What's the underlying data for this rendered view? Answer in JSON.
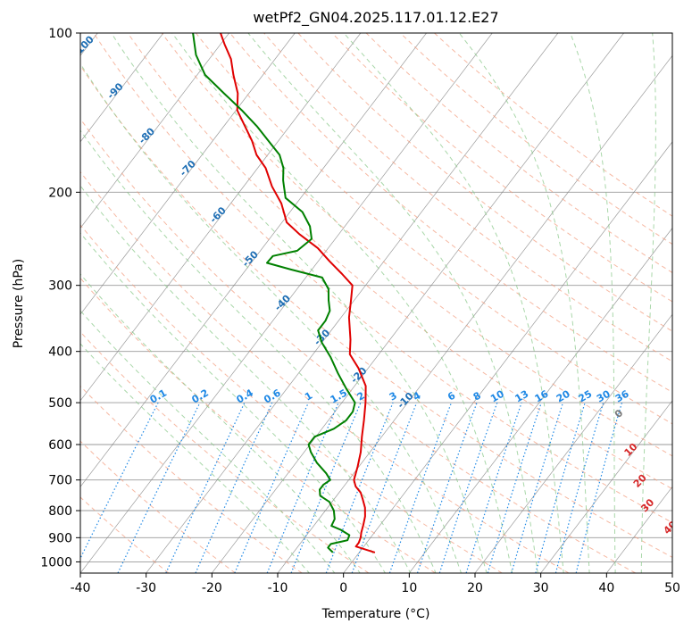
{
  "chart_data": {
    "type": "line",
    "subtype": "skew-t log-p diagram",
    "title": "wetPf2_GN04.2025.117.01.12.E27",
    "xlabel": "Temperature (°C)",
    "ylabel": "Pressure (hPa)",
    "xlim": [
      -40,
      50
    ],
    "ylim": [
      1050,
      100
    ],
    "y_scale": "log",
    "grid": true,
    "x_ticks": [
      "-40",
      "-30",
      "-20",
      "-10",
      "0",
      "10",
      "20",
      "30",
      "40",
      "50"
    ],
    "y_ticks": [
      "100",
      "200",
      "300",
      "400",
      "500",
      "600",
      "700",
      "800",
      "900",
      "1000"
    ],
    "series": [
      {
        "role": "temperature",
        "color": "#e00000",
        "points": [
          [
            2.4,
            960
          ],
          [
            -1.2,
            935
          ],
          [
            -1.2,
            920
          ],
          [
            -1.5,
            900
          ],
          [
            -2.0,
            880
          ],
          [
            -2.6,
            850
          ],
          [
            -3.3,
            820
          ],
          [
            -4.3,
            790
          ],
          [
            -5.7,
            760
          ],
          [
            -6.7,
            740
          ],
          [
            -8.2,
            720
          ],
          [
            -9.2,
            700
          ],
          [
            -10.2,
            660
          ],
          [
            -11.4,
            620
          ],
          [
            -13.0,
            580
          ],
          [
            -14.6,
            540
          ],
          [
            -16.4,
            500
          ],
          [
            -18.3,
            465
          ],
          [
            -21.5,
            430
          ],
          [
            -24.4,
            405
          ],
          [
            -26.0,
            380
          ],
          [
            -28.8,
            345
          ],
          [
            -30.5,
            320
          ],
          [
            -32.0,
            300
          ],
          [
            -35.0,
            285
          ],
          [
            -38.3,
            270
          ],
          [
            -41.6,
            255
          ],
          [
            -46.0,
            240
          ],
          [
            -49.3,
            228
          ],
          [
            -52.3,
            210
          ],
          [
            -55.7,
            195
          ],
          [
            -58.8,
            180
          ],
          [
            -61.7,
            170
          ],
          [
            -64.0,
            160
          ],
          [
            -66.8,
            150
          ],
          [
            -69.8,
            140
          ],
          [
            -71.7,
            130
          ],
          [
            -74.5,
            120
          ],
          [
            -76.7,
            112
          ],
          [
            -79.4,
            105
          ],
          [
            -81.3,
            100
          ]
        ]
      },
      {
        "role": "dewpoint",
        "color": "#008000",
        "points": [
          [
            -4.0,
            960
          ],
          [
            -5.3,
            940
          ],
          [
            -5.3,
            925
          ],
          [
            -3.2,
            910
          ],
          [
            -3.5,
            890
          ],
          [
            -5.4,
            870
          ],
          [
            -7.3,
            855
          ],
          [
            -7.6,
            830
          ],
          [
            -8.7,
            800
          ],
          [
            -10.4,
            770
          ],
          [
            -12.5,
            750
          ],
          [
            -13.3,
            730
          ],
          [
            -13.3,
            715
          ],
          [
            -12.8,
            700
          ],
          [
            -14.2,
            680
          ],
          [
            -16.8,
            650
          ],
          [
            -19.0,
            620
          ],
          [
            -20.2,
            600
          ],
          [
            -20.2,
            580
          ],
          [
            -18.2,
            560
          ],
          [
            -17.3,
            540
          ],
          [
            -17.3,
            520
          ],
          [
            -18.0,
            500
          ],
          [
            -21.0,
            470
          ],
          [
            -24.0,
            440
          ],
          [
            -27.0,
            410
          ],
          [
            -30.0,
            385
          ],
          [
            -32.0,
            365
          ],
          [
            -32.0,
            350
          ],
          [
            -32.5,
            335
          ],
          [
            -33.9,
            320
          ],
          [
            -35.2,
            305
          ],
          [
            -37.5,
            290
          ],
          [
            -43.2,
            280
          ],
          [
            -47.6,
            272
          ],
          [
            -47.5,
            264
          ],
          [
            -44.4,
            258
          ],
          [
            -43.6,
            245
          ],
          [
            -45.3,
            232
          ],
          [
            -48.1,
            218
          ],
          [
            -52.3,
            205
          ],
          [
            -54.7,
            190
          ],
          [
            -56.1,
            180
          ],
          [
            -58.2,
            170
          ],
          [
            -61.5,
            160
          ],
          [
            -65.0,
            150
          ],
          [
            -69.1,
            140
          ],
          [
            -73.8,
            130
          ],
          [
            -78.8,
            120
          ],
          [
            -82.5,
            110
          ],
          [
            -85.5,
            100
          ]
        ]
      }
    ],
    "dry_adiabat_labels": [
      "-100",
      "-90",
      "-80",
      "-70",
      "-60",
      "-50",
      "-40",
      "-30",
      "-20",
      "-10"
    ],
    "moist_adiabat_labels": [
      "0",
      "10",
      "20",
      "30",
      "40"
    ],
    "mixing_ratio_labels": [
      "0.1",
      "0.2",
      "0.4",
      "0.6",
      "1",
      "1.5",
      "2",
      "3",
      "4",
      "6",
      "8",
      "10",
      "13",
      "16",
      "20",
      "25",
      "30",
      "36"
    ],
    "colors": {
      "isotherm": "#7a7a7a",
      "isobar": "#9a9a9a",
      "dry_adiabat": "#f29a7a",
      "moist_adiabat": "#8cc98c",
      "mixing_ratio": "#1e88e5",
      "moist_label_zero": "#777777",
      "moist_label_other": "#d62728"
    }
  }
}
